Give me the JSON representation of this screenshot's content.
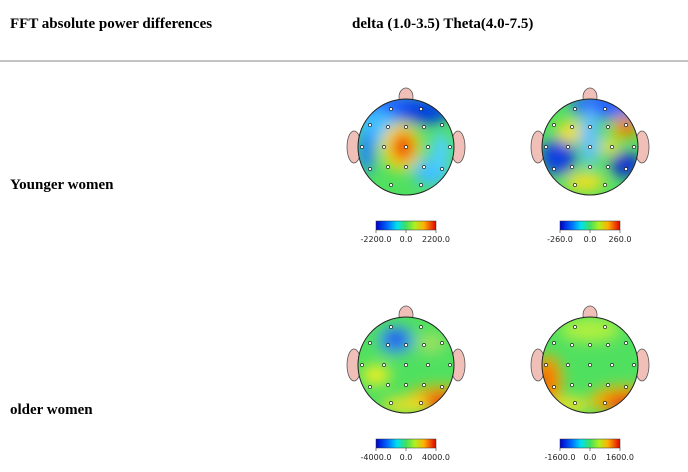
{
  "header": {
    "title": "FFT absolute power differences",
    "bands": "delta (1.0-3.5) Theta(4.0-7.5)"
  },
  "rows": [
    {
      "label": "Younger women",
      "maps": [
        {
          "scale_ticks": [
            {
              "value": -2200,
              "label": "-2200.0"
            },
            {
              "value": 0,
              "label": "0.0"
            },
            {
              "value": 2200,
              "label": "2200.0"
            }
          ]
        },
        {
          "scale_ticks": [
            {
              "value": -260,
              "label": "-260.0"
            },
            {
              "value": 0,
              "label": "0.0"
            },
            {
              "value": 260,
              "label": "260.0"
            }
          ]
        }
      ]
    },
    {
      "label": "older women",
      "maps": [
        {
          "scale_ticks": [
            {
              "value": -4000,
              "label": "-4000.0"
            },
            {
              "value": 0,
              "label": "0.0"
            },
            {
              "value": 4000,
              "label": "4000.0"
            }
          ]
        },
        {
          "scale_ticks": [
            {
              "value": -1600,
              "label": "-1600.0"
            },
            {
              "value": 0,
              "label": "0.0"
            },
            {
              "value": 1600,
              "label": "1600.0"
            }
          ]
        }
      ]
    }
  ]
}
